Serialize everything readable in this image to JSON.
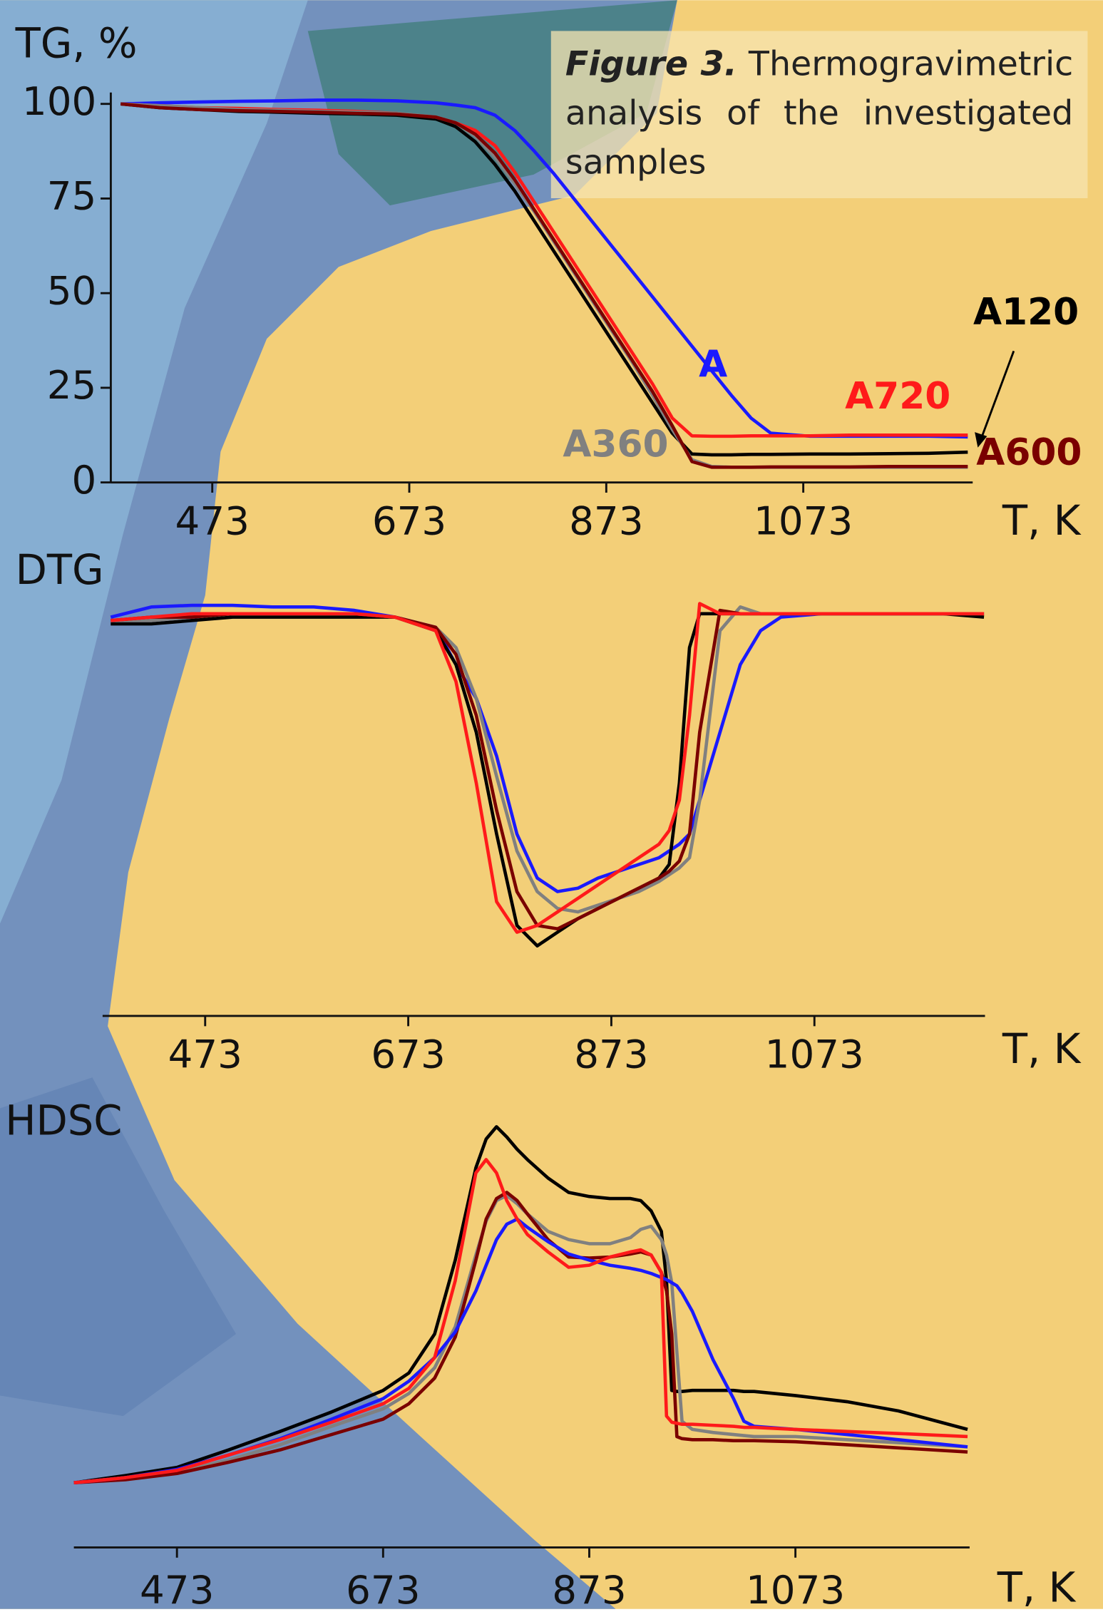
{
  "caption": {
    "label": "Figure 3.",
    "text": "Thermogravimetric analysis of the investigated samples"
  },
  "chart_data": [
    {
      "type": "line",
      "ylabel": "TG, %",
      "xlabel": "T, K",
      "xlim": [
        370,
        1245
      ],
      "ylim": [
        0,
        103
      ],
      "xticks": [
        473,
        673,
        873,
        1073
      ],
      "yticks": [
        0,
        25,
        50,
        75,
        100
      ],
      "x": [
        380,
        420,
        460,
        500,
        540,
        580,
        620,
        660,
        700,
        720,
        740,
        760,
        780,
        800,
        820,
        840,
        860,
        880,
        900,
        920,
        940,
        960,
        980,
        1000,
        1020,
        1040,
        1080,
        1120,
        1160,
        1200,
        1240
      ],
      "series": [
        {
          "name": "A",
          "color": "#1a1aff",
          "values": [
            100,
            100.3,
            100.5,
            100.7,
            100.8,
            101,
            101,
            100.8,
            100.3,
            99.7,
            99,
            97,
            93,
            87.5,
            81.5,
            75,
            68.5,
            62,
            55.5,
            49,
            42.5,
            36,
            29.5,
            23,
            17,
            13,
            12.2,
            12.2,
            12.2,
            12.2,
            12
          ]
        },
        {
          "name": "A720",
          "color": "#ff1a1a",
          "values": [
            100,
            99.5,
            99,
            98.8,
            98.5,
            98.3,
            98,
            97.5,
            96.5,
            95,
            93,
            89,
            82,
            74,
            66,
            58,
            50,
            42,
            34,
            26,
            17,
            12.3,
            12.2,
            12.2,
            12.3,
            12.3,
            12.3,
            12.5,
            12.5,
            12.5,
            12.5
          ]
        },
        {
          "name": "A120",
          "color": "#000000",
          "values": [
            100,
            99,
            98.5,
            98,
            97.8,
            97.5,
            97.3,
            97,
            96,
            94,
            90,
            84,
            77,
            69,
            61,
            53,
            45,
            37,
            29,
            21,
            13,
            7.5,
            7.3,
            7.3,
            7.4,
            7.4,
            7.5,
            7.5,
            7.6,
            7.7,
            8
          ]
        },
        {
          "name": "A360",
          "color": "#808080",
          "values": [
            100,
            99.5,
            99,
            98.5,
            98.3,
            98,
            97.8,
            97.5,
            96.5,
            95,
            91.5,
            86,
            79,
            71.5,
            63.5,
            55.5,
            47.5,
            39.5,
            31.5,
            23,
            14,
            6,
            4.2,
            4,
            4,
            4,
            4,
            4,
            4,
            4,
            4
          ]
        },
        {
          "name": "A600",
          "color": "#7a0000",
          "values": [
            100,
            99,
            98.5,
            98.2,
            98,
            97.8,
            97.5,
            97.3,
            96.5,
            95,
            92,
            87,
            80,
            72,
            64,
            56,
            48,
            40,
            32,
            24,
            15,
            5.5,
            4,
            4,
            4,
            4.1,
            4.1,
            4.1,
            4.2,
            4.2,
            4.2
          ]
        }
      ]
    },
    {
      "type": "line",
      "title": "DTG",
      "xlabel": "T, K",
      "xlim": [
        372,
        1241
      ],
      "ylim": [
        -119,
        10
      ],
      "xticks": [
        473,
        673,
        873,
        1073
      ],
      "x": [
        380,
        420,
        460,
        500,
        540,
        580,
        620,
        660,
        700,
        720,
        740,
        760,
        780,
        800,
        820,
        840,
        860,
        880,
        900,
        920,
        930,
        940,
        950,
        960,
        980,
        1000,
        1020,
        1040,
        1080,
        1120,
        1160,
        1200,
        1240
      ],
      "series": [
        {
          "color": "#1a1aff",
          "values": [
            -1,
            2,
            2.5,
            2.5,
            2,
            2,
            1,
            -1,
            -4,
            -15,
            -25,
            -42,
            -65,
            -78,
            -82,
            -81,
            -78,
            -76,
            -74,
            -72,
            -70,
            -68,
            -65,
            -55,
            -35,
            -15,
            -5,
            -1,
            0,
            0,
            0,
            0,
            0
          ]
        },
        {
          "color": "#000000",
          "values": [
            -3,
            -3,
            -2,
            -1,
            -1,
            -1,
            -1,
            -1,
            -5,
            -15,
            -35,
            -65,
            -92,
            -98,
            -94,
            -90,
            -87,
            -84,
            -81,
            -78,
            -74,
            -50,
            -10,
            0,
            0,
            0,
            0,
            0,
            0,
            0,
            0,
            0,
            -1
          ]
        },
        {
          "color": "#808080",
          "values": [
            -2,
            -2,
            -1,
            0,
            0,
            0,
            0,
            -1,
            -4,
            -10,
            -25,
            -48,
            -70,
            -82,
            -87,
            -88,
            -86,
            -84,
            -82,
            -79,
            -77,
            -75,
            -72,
            -55,
            -5,
            2,
            0,
            0,
            0,
            0,
            0,
            0,
            0
          ]
        },
        {
          "color": "#7a0000",
          "values": [
            -2,
            -1,
            -1,
            0,
            0,
            0,
            0,
            -1,
            -4,
            -12,
            -30,
            -58,
            -82,
            -92,
            -93,
            -90,
            -87,
            -84,
            -81,
            -78,
            -76,
            -73,
            -65,
            -35,
            1,
            0,
            0,
            0,
            0,
            0,
            0,
            0,
            0
          ]
        },
        {
          "color": "#ff1a1a",
          "values": [
            -2,
            -1,
            0,
            0,
            0,
            0,
            0,
            -1,
            -5,
            -20,
            -50,
            -85,
            -94,
            -92,
            -88,
            -84,
            -80,
            -76,
            -72,
            -68,
            -64,
            -55,
            -30,
            3,
            0,
            0,
            0,
            0,
            0,
            0,
            0,
            0,
            0
          ]
        }
      ]
    },
    {
      "type": "line",
      "title": "HDSC",
      "xlabel": "T, K",
      "xlim": [
        373,
        1242
      ],
      "ylim": [
        0,
        420
      ],
      "xticks": [
        473,
        673,
        873,
        1073
      ],
      "x": [
        373,
        423,
        473,
        523,
        573,
        623,
        673,
        698,
        723,
        743,
        763,
        773,
        783,
        793,
        803,
        813,
        833,
        853,
        873,
        893,
        913,
        923,
        933,
        943,
        948,
        953,
        958,
        963,
        973,
        993,
        1013,
        1023,
        1033,
        1073,
        1123,
        1173,
        1240
      ],
      "series": [
        {
          "color": "#000000",
          "values": [
            63,
            70,
            78,
            95,
            113,
            132,
            153,
            170,
            208,
            280,
            370,
            398,
            410,
            400,
            388,
            378,
            360,
            346,
            342,
            340,
            340,
            338,
            328,
            308,
            260,
            153,
            152,
            152,
            153,
            153,
            153,
            152,
            152,
            148,
            142,
            133,
            115
          ]
        },
        {
          "color": "#808080",
          "values": [
            63,
            68,
            74,
            85,
            100,
            118,
            135,
            150,
            175,
            215,
            285,
            318,
            338,
            343,
            335,
            325,
            308,
            300,
            296,
            296,
            302,
            310,
            313,
            300,
            285,
            258,
            190,
            123,
            115,
            112,
            110,
            109,
            108,
            108,
            105,
            102,
            98
          ]
        },
        {
          "color": "#7a0000",
          "values": [
            63,
            66,
            72,
            83,
            95,
            110,
            125,
            140,
            165,
            205,
            280,
            320,
            340,
            346,
            338,
            325,
            300,
            283,
            282,
            283,
            286,
            288,
            285,
            268,
            250,
            208,
            108,
            106,
            105,
            105,
            104,
            104,
            104,
            103,
            100,
            97,
            93
          ]
        },
        {
          "color": "#1a1aff",
          "values": [
            63,
            68,
            76,
            90,
            106,
            125,
            145,
            162,
            185,
            210,
            250,
            275,
            300,
            315,
            320,
            312,
            298,
            286,
            280,
            275,
            272,
            270,
            267,
            263,
            261,
            258,
            255,
            248,
            230,
            183,
            145,
            123,
            118,
            115,
            110,
            105,
            98
          ]
        },
        {
          "color": "#ff1a1a",
          "values": [
            63,
            68,
            75,
            90,
            105,
            122,
            140,
            155,
            185,
            260,
            365,
            378,
            365,
            338,
            320,
            305,
            288,
            273,
            275,
            283,
            288,
            290,
            285,
            268,
            128,
            122,
            121,
            120,
            120,
            119,
            118,
            117,
            117,
            115,
            113,
            111,
            108
          ]
        }
      ]
    }
  ]
}
